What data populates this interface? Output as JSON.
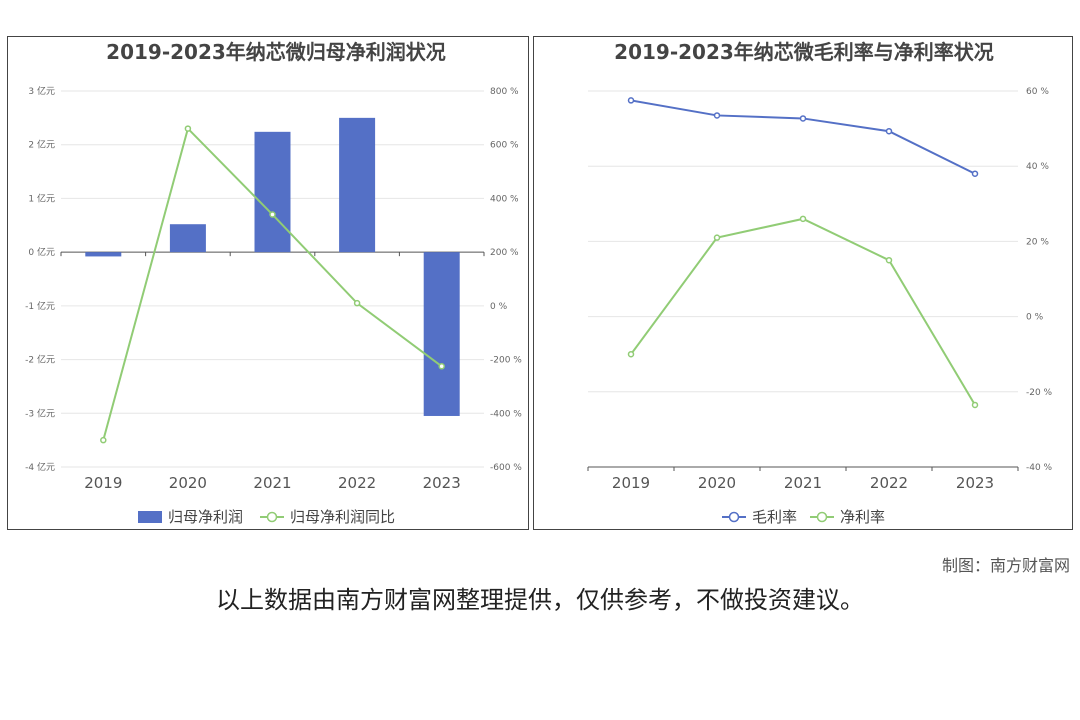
{
  "chart_data": [
    {
      "type": "bar",
      "title": "2019-2023年纳芯微归母净利润状况",
      "categories": [
        "2019",
        "2020",
        "2021",
        "2022",
        "2023"
      ],
      "y_left": {
        "ticks": [
          "3 亿元",
          "2 亿元",
          "1 亿元",
          "0 亿元",
          "-1 亿元",
          "-2 亿元",
          "-3 亿元",
          "-4 亿元"
        ],
        "ylim": [
          -4,
          3
        ]
      },
      "y_right": {
        "ticks": [
          "800 %",
          "600 %",
          "400 %",
          "200 %",
          "0 %",
          "-200 %",
          "-400 %",
          "-600 %"
        ],
        "ylim": [
          -600,
          800
        ]
      },
      "series": [
        {
          "name": "归母净利润",
          "type": "bar",
          "axis": "left",
          "color": "#5470c6",
          "values": [
            -0.08,
            0.52,
            2.24,
            2.5,
            -3.05
          ]
        },
        {
          "name": "归母净利润同比",
          "type": "line",
          "axis": "right",
          "color": "#91cc75",
          "values": [
            -500,
            660,
            340,
            10,
            -225
          ]
        }
      ],
      "legend": "bottom"
    },
    {
      "type": "line",
      "title": "2019-2023年纳芯微毛利率与净利率状况",
      "categories": [
        "2019",
        "2020",
        "2021",
        "2022",
        "2023"
      ],
      "y_right": {
        "ticks": [
          "60 %",
          "40 %",
          "20 %",
          "0 %",
          "-20 %",
          "-40 %"
        ],
        "ylim": [
          -40,
          60
        ]
      },
      "series": [
        {
          "name": "毛利率",
          "color": "#5470c6",
          "values": [
            57.5,
            53.5,
            52.7,
            49.3,
            38.0
          ]
        },
        {
          "name": "净利率",
          "color": "#91cc75",
          "values": [
            -10.0,
            21.0,
            26.0,
            15.0,
            -23.5
          ]
        }
      ],
      "legend": "bottom"
    }
  ],
  "footer": {
    "credit": "制图：南方财富网",
    "disclaimer": "以上数据由南方财富网整理提供，仅供参考，不做投资建议。"
  }
}
